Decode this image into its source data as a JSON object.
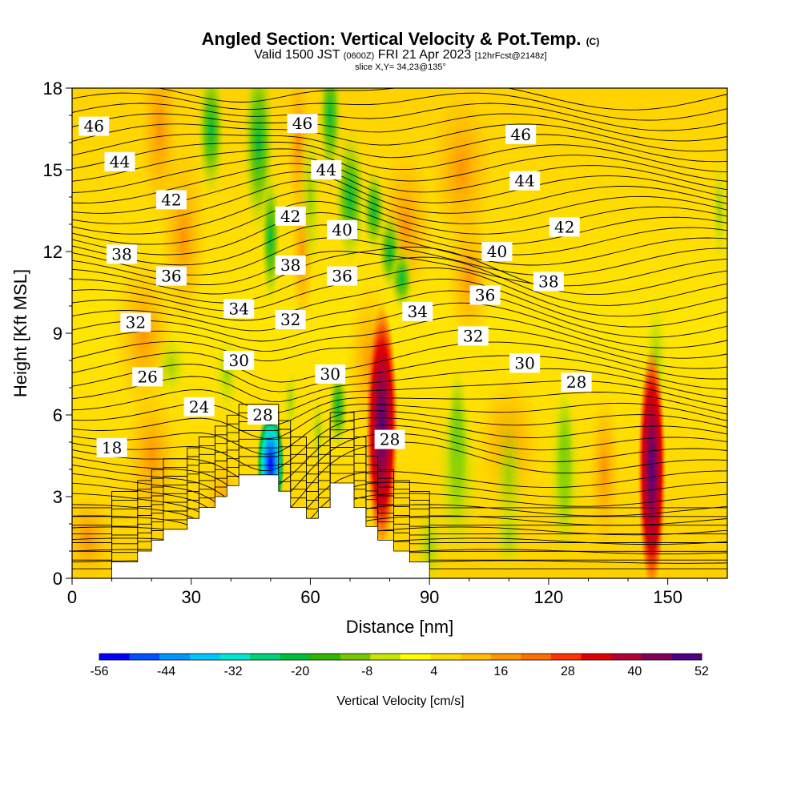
{
  "header": {
    "title_main": "Angled Section: Vertical Velocity & Pot.Temp.",
    "title_copyright": "(C)",
    "valid_prefix": "Valid 1500 JST",
    "valid_utc": "(0600Z)",
    "valid_date": "FRI 21 Apr 2023",
    "forecast": "[12hrFcst@2148z]",
    "slice": "slice X,Y= 34,23@135°"
  },
  "chart_data": {
    "type": "heatmap",
    "xlabel": "Distance [nm]",
    "ylabel": "Height [Kft MSL]",
    "xlim": [
      0,
      165
    ],
    "ylim": [
      0,
      18
    ],
    "x_ticks": [
      "0",
      "30",
      "60",
      "90",
      "120",
      "150"
    ],
    "y_ticks": [
      "0",
      "3",
      "6",
      "9",
      "12",
      "15",
      "18"
    ],
    "colorbar": {
      "label": "Vertical Velocity [cm/s]",
      "tick_labels": [
        "-56",
        "-44",
        "-32",
        "-20",
        "-8",
        "4",
        "16",
        "28",
        "40",
        "52"
      ],
      "colors": [
        "#0000ff",
        "#0050ff",
        "#0096ff",
        "#00c8ff",
        "#00e6d2",
        "#00d278",
        "#00be3c",
        "#32b400",
        "#78c800",
        "#c8e600",
        "#ffff00",
        "#ffdc00",
        "#ffbe00",
        "#ff9600",
        "#ff6e00",
        "#ff3200",
        "#e10000",
        "#b40032",
        "#82005a",
        "#500082"
      ]
    },
    "theta_labels": [
      {
        "text": "46",
        "x": 5.5,
        "y": 16.6
      },
      {
        "text": "46",
        "x": 58,
        "y": 16.7
      },
      {
        "text": "46",
        "x": 113,
        "y": 16.3
      },
      {
        "text": "44",
        "x": 12,
        "y": 15.3
      },
      {
        "text": "44",
        "x": 64,
        "y": 15.0
      },
      {
        "text": "44",
        "x": 114,
        "y": 14.6
      },
      {
        "text": "42",
        "x": 25,
        "y": 13.9
      },
      {
        "text": "42",
        "x": 55,
        "y": 13.3
      },
      {
        "text": "42",
        "x": 124,
        "y": 12.9
      },
      {
        "text": "40",
        "x": 68,
        "y": 12.8
      },
      {
        "text": "40",
        "x": 107,
        "y": 12.0
      },
      {
        "text": "38",
        "x": 12.5,
        "y": 11.9
      },
      {
        "text": "38",
        "x": 55,
        "y": 11.5
      },
      {
        "text": "38",
        "x": 120,
        "y": 10.9
      },
      {
        "text": "36",
        "x": 25,
        "y": 11.1
      },
      {
        "text": "36",
        "x": 68,
        "y": 11.1
      },
      {
        "text": "36",
        "x": 104,
        "y": 10.4
      },
      {
        "text": "34",
        "x": 42,
        "y": 9.9
      },
      {
        "text": "34",
        "x": 87,
        "y": 9.8
      },
      {
        "text": "32",
        "x": 16,
        "y": 9.4
      },
      {
        "text": "32",
        "x": 55,
        "y": 9.5
      },
      {
        "text": "32",
        "x": 101,
        "y": 8.9
      },
      {
        "text": "30",
        "x": 42,
        "y": 8.0
      },
      {
        "text": "30",
        "x": 65,
        "y": 7.5
      },
      {
        "text": "30",
        "x": 114,
        "y": 7.9
      },
      {
        "text": "28",
        "x": 48,
        "y": 6.0
      },
      {
        "text": "28",
        "x": 80,
        "y": 5.1
      },
      {
        "text": "28",
        "x": 127,
        "y": 7.2
      },
      {
        "text": "26",
        "x": 19,
        "y": 7.4
      },
      {
        "text": "24",
        "x": 32,
        "y": 6.3
      },
      {
        "text": "18",
        "x": 10,
        "y": 4.8
      }
    ],
    "terrain": [
      [
        0,
        0
      ],
      [
        10,
        0
      ],
      [
        10,
        0.6
      ],
      [
        16.5,
        0.6
      ],
      [
        16.5,
        1.0
      ],
      [
        20,
        1.0
      ],
      [
        20,
        1.4
      ],
      [
        23,
        1.4
      ],
      [
        23,
        1.8
      ],
      [
        29,
        1.8
      ],
      [
        29,
        2.2
      ],
      [
        32,
        2.2
      ],
      [
        32,
        2.6
      ],
      [
        36,
        2.6
      ],
      [
        36,
        3.0
      ],
      [
        39,
        3.0
      ],
      [
        39,
        3.4
      ],
      [
        42,
        3.4
      ],
      [
        42,
        3.8
      ],
      [
        52,
        3.8
      ],
      [
        52,
        3.2
      ],
      [
        55,
        3.2
      ],
      [
        55,
        2.6
      ],
      [
        59,
        2.6
      ],
      [
        59,
        2.2
      ],
      [
        62,
        2.2
      ],
      [
        62,
        2.6
      ],
      [
        65,
        2.6
      ],
      [
        65,
        3.5
      ],
      [
        71,
        3.5
      ],
      [
        71,
        2.6
      ],
      [
        74,
        2.6
      ],
      [
        74,
        1.9
      ],
      [
        77,
        1.9
      ],
      [
        77,
        1.4
      ],
      [
        81,
        1.4
      ],
      [
        81,
        1.0
      ],
      [
        85,
        1.0
      ],
      [
        85,
        0.6
      ],
      [
        90,
        0.6
      ],
      [
        90,
        0
      ],
      [
        165,
        0
      ]
    ]
  }
}
